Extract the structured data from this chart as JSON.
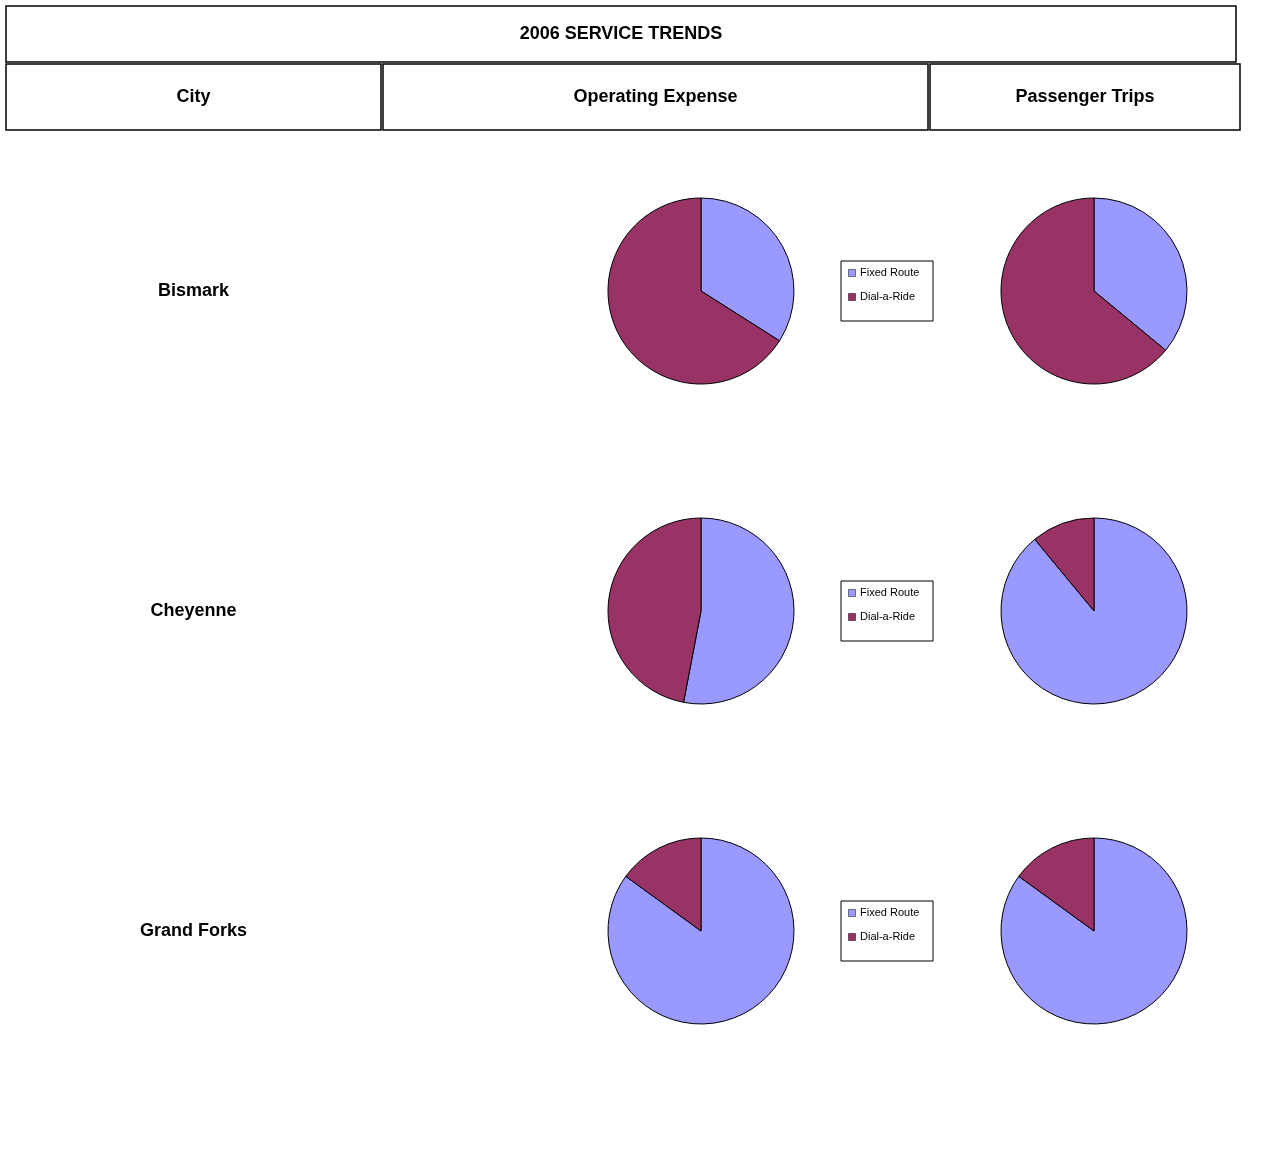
{
  "chart_data": [
    {
      "type": "other",
      "title": "2006 SERVICE TRENDS",
      "annotations": [
        "City",
        "Operating Expense",
        "Passenger Trips",
        "Bismark",
        "Cheyenne",
        "Grand Forks"
      ]
    },
    {
      "type": "pie",
      "categories": [
        "Fixed Route",
        "Dial-a-Ride"
      ],
      "values": [
        34,
        66
      ],
      "colors": [
        "#9999ff",
        "#993366"
      ],
      "legend": "right"
    },
    {
      "type": "pie",
      "categories": [
        null,
        null
      ],
      "values": [
        36,
        64
      ],
      "colors": [
        "#9999ff",
        "#993366"
      ]
    },
    {
      "type": "pie",
      "categories": [
        "Fixed Route",
        "Dial-a-Ride"
      ],
      "values": [
        53,
        47
      ],
      "colors": [
        "#9999ff",
        "#993366"
      ],
      "legend": "right"
    },
    {
      "type": "pie",
      "categories": [
        null,
        null
      ],
      "values": [
        89,
        11
      ],
      "colors": [
        "#9999ff",
        "#993366"
      ]
    },
    {
      "type": "pie",
      "categories": [
        "Fixed Route",
        "Dial-a-Ride"
      ],
      "values": [
        85,
        15
      ],
      "colors": [
        "#9999ff",
        "#993366"
      ],
      "legend": "right"
    },
    {
      "type": "pie",
      "categories": [
        null,
        null
      ],
      "values": [
        85,
        15
      ],
      "colors": [
        "#9999ff",
        "#993366"
      ]
    }
  ]
}
